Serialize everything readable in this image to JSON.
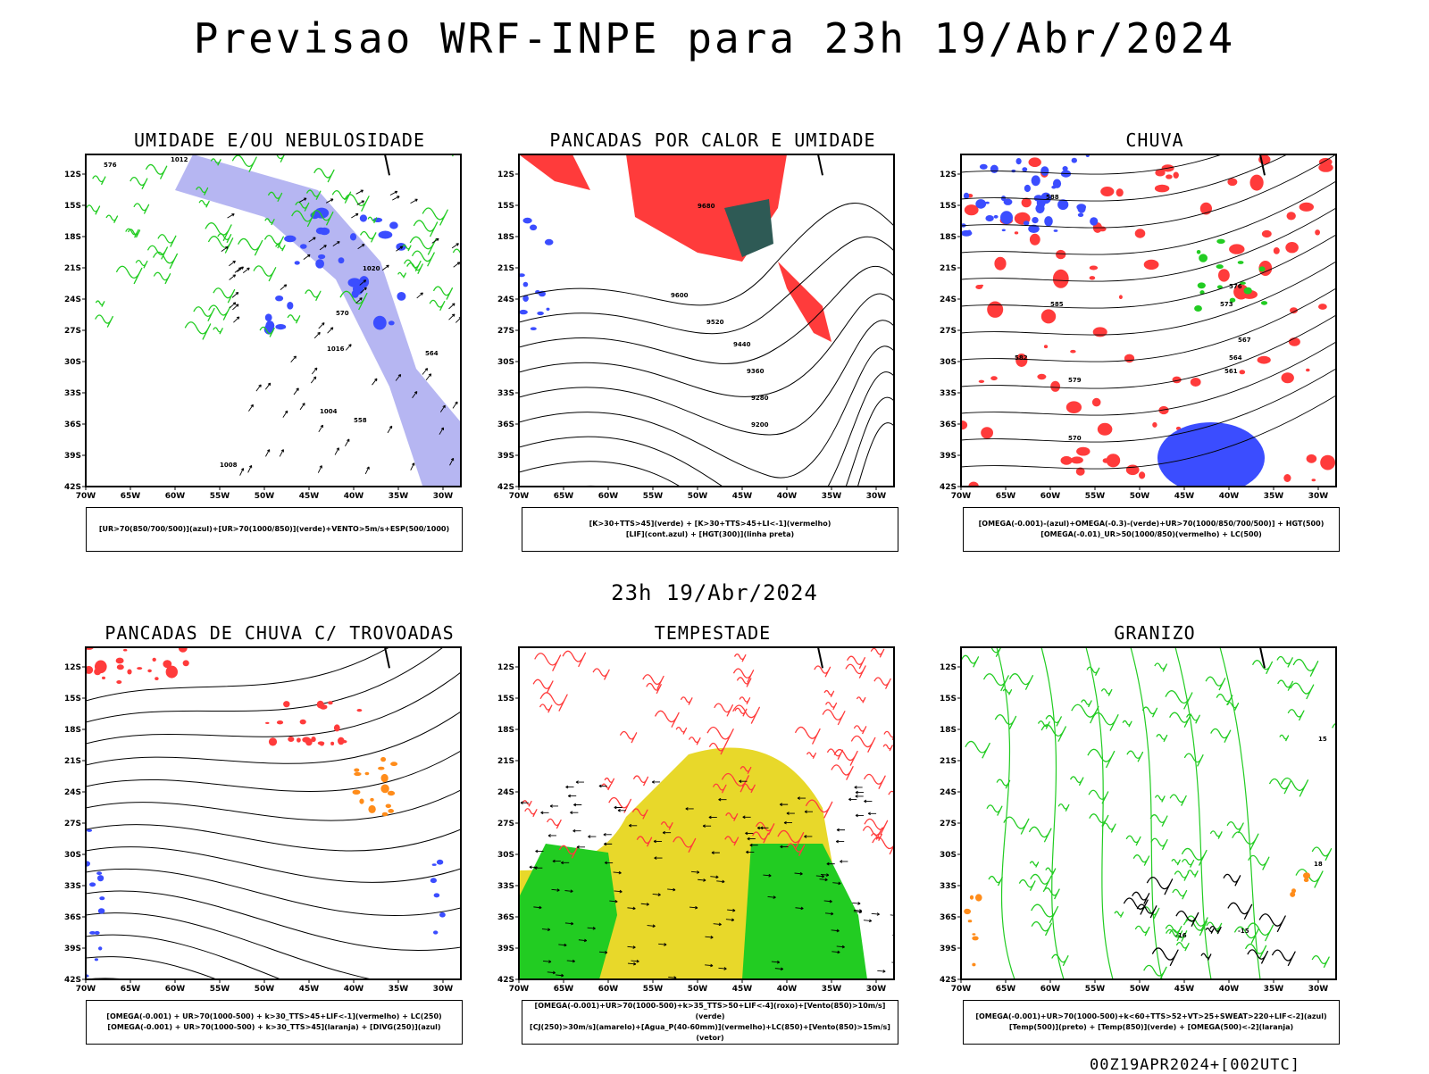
{
  "title": "Previsao WRF-INPE  para 23h 19/Abr/2024",
  "mid_title": "23h 19/Abr/2024",
  "footer": "00Z19APR2024+[002UTC]",
  "lat_ticks": [
    "12S",
    "15S",
    "18S",
    "21S",
    "24S",
    "27S",
    "30S",
    "33S",
    "36S",
    "39S",
    "42S"
  ],
  "lon_ticks": [
    "70W",
    "65W",
    "60W",
    "55W",
    "50W",
    "45W",
    "40W",
    "35W",
    "30W"
  ],
  "colors": {
    "blue": "#3b4dff",
    "green": "#22cc22",
    "red": "#ff3b3b",
    "orange": "#ff8c1a",
    "yellow": "#e8d82a",
    "lavender": "#a9a9f0",
    "teal": "#2e5a55",
    "purple": "#7b3fa0"
  },
  "panels": [
    {
      "id": "umidade",
      "title": "UMIDADE E/OU NEBULOSIDADE",
      "caption": [
        "[UR>70(850/700/500)](azul)+[UR>70(1000/850)](verde)+VENTO>5m/s+ESP(500/1000)"
      ],
      "contour_labels": [
        "1012",
        "1016",
        "1020",
        "1008",
        "1004",
        "576",
        "570",
        "564",
        "558"
      ]
    },
    {
      "id": "pancadas-calor",
      "title": "PANCADAS POR CALOR E UMIDADE",
      "caption": [
        "[K>30+TTS>45](verde) + [K>30+TTS>45+LI<-1](vermelho)",
        "[LIF](cont.azul) + [HGT(300)](linha preta)"
      ],
      "contour_labels": [
        "9680",
        "9600",
        "9520",
        "9440",
        "9360",
        "9280",
        "9200"
      ]
    },
    {
      "id": "chuva",
      "title": "CHUVA",
      "caption": [
        "[OMEGA(-0.001)-(azul)+OMEGA(-0.3)-(verde)+UR>70(1000/850/700/500)] + HGT(500)",
        "[OMEGA(-0.01)_UR>50(1000/850)(vermelho) + LC(500)"
      ],
      "contour_labels": [
        "588",
        "585",
        "582",
        "579",
        "576",
        "573",
        "570",
        "567",
        "564",
        "561"
      ]
    },
    {
      "id": "trovoadas",
      "title": "PANCADAS DE CHUVA C/ TROVOADAS",
      "caption": [
        "[OMEGA(-0.001) + UR>70(1000-500) + k>30_TTS>45+LIF<-1](vermelho) + LC(250)",
        "[OMEGA(-0.001) + UR>70(1000-500) + k>30_TTS>45](laranja) + [DIVG(250)](azul)"
      ],
      "contour_labels": []
    },
    {
      "id": "tempestade",
      "title": "TEMPESTADE",
      "caption": [
        "[OMEGA(-0.001)+UR>70(1000-500)+k>35_TTS>50+LIF<-4](roxo)+[Vento(850)>10m/s](verde)",
        "[CJ(250)>30m/s](amarelo)+[Agua_P(40-60mm)](vermelho)+LC(850)+[Vento(850)>15m/s](vetor)"
      ],
      "contour_labels": []
    },
    {
      "id": "granizo",
      "title": "GRANIZO",
      "caption": [
        "[OMEGA(-0.001)+UR>70(1000-500)+k<60+TTS>52+VT>25+SWEAT>220+LIF<-2](azul)",
        "[Temp(500)](preto) + [Temp(850)](verde) + [OMEGA(500)<-2](laranja)"
      ],
      "contour_labels": [
        "-15",
        "-16",
        "15",
        "18"
      ]
    }
  ]
}
